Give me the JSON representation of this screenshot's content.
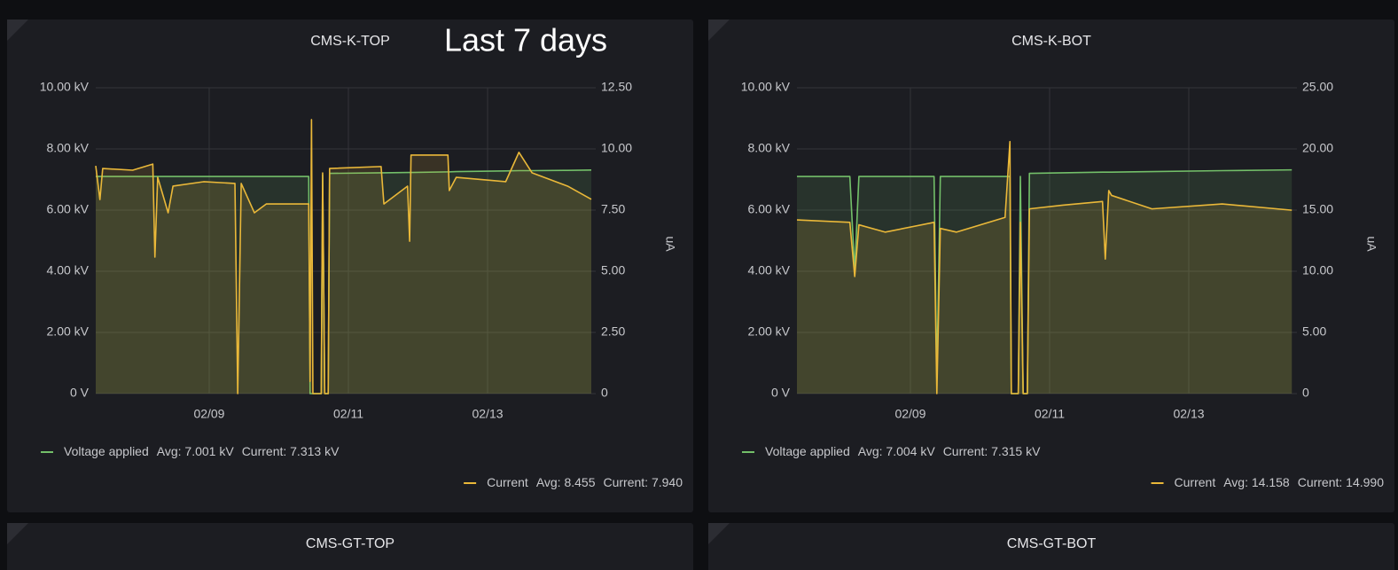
{
  "chart_data": [
    {
      "type": "line",
      "title": "CMS-K-TOP",
      "annotation": "Last 7 days",
      "x": [
        7.37,
        7.43,
        7.47,
        7.9,
        8.19,
        8.22,
        8.26,
        8.41,
        8.48,
        8.92,
        9.37,
        9.41,
        9.46,
        9.65,
        9.82,
        10.43,
        10.45,
        10.47,
        10.49,
        10.61,
        10.63,
        10.66,
        10.71,
        10.73,
        11.47,
        11.51,
        11.85,
        11.88,
        11.9,
        12.43,
        12.45,
        12.55,
        13.26,
        13.45,
        13.64,
        14.15,
        14.49
      ],
      "xlim": [
        7.37,
        14.49
      ],
      "xticks": [
        {
          "value": 9,
          "label": "02/09"
        },
        {
          "value": 11,
          "label": "02/11"
        },
        {
          "value": 13,
          "label": "02/13"
        }
      ],
      "ylim": [
        0,
        10
      ],
      "yticks": [
        {
          "value": 0,
          "label": "0 V"
        },
        {
          "value": 2,
          "label": "2.00 kV"
        },
        {
          "value": 4,
          "label": "4.00 kV"
        },
        {
          "value": 6,
          "label": "6.00 kV"
        },
        {
          "value": 8,
          "label": "8.00 kV"
        },
        {
          "value": 10,
          "label": "10.00 kV"
        }
      ],
      "y2lim": [
        0,
        12.5
      ],
      "y2ticks": [
        0,
        {
          "value": 2.5,
          "label": "2.50"
        },
        {
          "value": 5,
          "label": "5.00"
        },
        {
          "value": 7.5,
          "label": "7.50"
        },
        {
          "value": 10,
          "label": "10.00"
        },
        {
          "value": 12.5,
          "label": "12.50"
        }
      ],
      "y2label": "uA",
      "grid": true,
      "series": [
        {
          "name": "Voltage applied",
          "color": "#73bf69",
          "legend_values": [
            "Avg: 7.001 kV",
            "Current: 7.313 kV"
          ],
          "values": [
            7.1,
            7.1,
            7.1,
            7.1,
            7.1,
            7.1,
            7.1,
            7.1,
            7.1,
            7.1,
            7.1,
            7.1,
            7.1,
            7.1,
            7.1,
            7.1,
            0,
            0,
            0,
            0,
            7.15,
            0,
            0,
            7.2,
            7.22,
            7.22,
            7.23,
            7.23,
            7.23,
            7.25,
            7.25,
            7.26,
            7.28,
            7.29,
            7.29,
            7.3,
            7.31
          ]
        },
        {
          "name": "Current",
          "axis": "y2",
          "color": "#eab839",
          "legend_values": [
            "Avg: 8.455",
            "Current: 7.940"
          ],
          "values": [
            9.31,
            7.93,
            9.2,
            9.13,
            9.38,
            5.58,
            8.84,
            7.39,
            8.48,
            8.66,
            8.59,
            0,
            8.59,
            7.39,
            7.75,
            7.75,
            0.5,
            11.2,
            0,
            0,
            9.02,
            0,
            0,
            9.2,
            9.28,
            7.75,
            8.48,
            6.23,
            9.75,
            9.75,
            8.3,
            8.84,
            8.66,
            9.86,
            9.02,
            8.48,
            7.94
          ]
        }
      ]
    },
    {
      "type": "line",
      "title": "CMS-K-BOT",
      "x": [
        7.37,
        8.13,
        8.2,
        8.26,
        8.64,
        9.34,
        9.38,
        9.43,
        9.66,
        10.36,
        10.43,
        10.45,
        10.55,
        10.58,
        10.62,
        10.68,
        10.71,
        11.19,
        11.76,
        11.8,
        11.85,
        11.89,
        12.47,
        13.48,
        14.48
      ],
      "xlim": [
        7.37,
        14.49
      ],
      "xticks": [
        {
          "value": 9,
          "label": "02/09"
        },
        {
          "value": 11,
          "label": "02/11"
        },
        {
          "value": 13,
          "label": "02/13"
        }
      ],
      "ylim": [
        0,
        10
      ],
      "yticks": [
        {
          "value": 0,
          "label": "0 V"
        },
        {
          "value": 2,
          "label": "2.00 kV"
        },
        {
          "value": 4,
          "label": "4.00 kV"
        },
        {
          "value": 6,
          "label": "6.00 kV"
        },
        {
          "value": 8,
          "label": "8.00 kV"
        },
        {
          "value": 10,
          "label": "10.00 kV"
        }
      ],
      "y2lim": [
        0,
        25
      ],
      "y2ticks": [
        0,
        {
          "value": 5,
          "label": "5.00"
        },
        {
          "value": 10,
          "label": "10.00"
        },
        {
          "value": 15,
          "label": "15.00"
        },
        {
          "value": 20,
          "label": "20.00"
        },
        {
          "value": 25,
          "label": "25.00"
        }
      ],
      "y2label": "uA",
      "grid": true,
      "series": [
        {
          "name": "Voltage applied",
          "color": "#73bf69",
          "legend_values": [
            "Avg: 7.004 kV",
            "Current: 7.315 kV"
          ],
          "values": [
            7.1,
            7.1,
            4.0,
            7.1,
            7.1,
            7.1,
            0.5,
            7.1,
            7.1,
            7.1,
            7.1,
            0,
            0,
            7.1,
            0,
            0,
            7.2,
            7.22,
            7.24,
            7.24,
            7.24,
            7.24,
            7.26,
            7.29,
            7.315
          ]
        },
        {
          "name": "Current",
          "axis": "y2",
          "color": "#eab839",
          "legend_values": [
            "Avg: 14.158",
            "Current: 14.990"
          ],
          "values": [
            14.2,
            14.0,
            9.57,
            13.8,
            13.2,
            14.0,
            0,
            13.5,
            13.2,
            14.4,
            20.6,
            0,
            0,
            14.0,
            0,
            0,
            15.1,
            15.4,
            15.7,
            11.0,
            16.6,
            16.2,
            15.1,
            15.5,
            14.99
          ]
        }
      ]
    }
  ],
  "panels": [
    {
      "title": "CMS-GT-TOP"
    },
    {
      "title": "CMS-GT-BOT"
    }
  ]
}
